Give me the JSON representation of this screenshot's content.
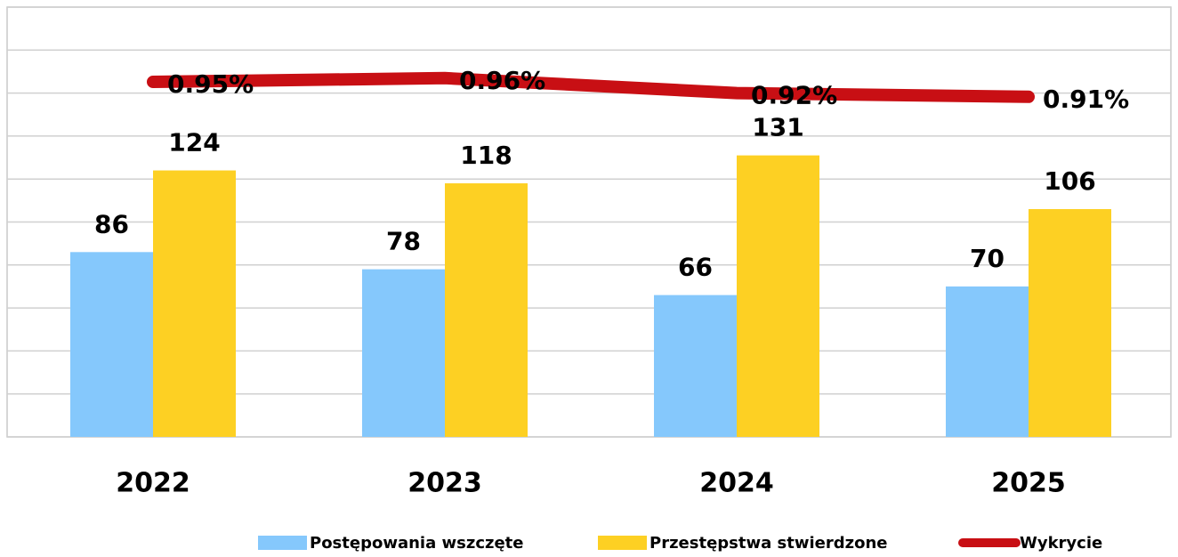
{
  "chart_data": {
    "type": "bar",
    "categories": [
      "2022",
      "2023",
      "2024",
      "2025"
    ],
    "series": [
      {
        "name": "Postępowania wszczęte",
        "color": "#85c8fc",
        "type": "bar",
        "values": [
          86,
          78,
          66,
          70
        ]
      },
      {
        "name": "Przestępstwa stwierdzone",
        "color": "#fdd023",
        "type": "bar",
        "values": [
          124,
          118,
          131,
          106
        ]
      },
      {
        "name": "Wykrycie",
        "color": "#c80f14",
        "type": "line",
        "axis": "y2",
        "values": [
          0.95,
          0.96,
          0.92,
          0.91
        ],
        "value_labels": [
          "0.95%",
          "0.96%",
          "0.92%",
          "0.91%"
        ]
      }
    ],
    "ylim": [
      0,
      200
    ],
    "yticks": [
      0,
      20,
      40,
      60,
      80,
      100,
      120,
      140,
      160,
      180,
      200
    ],
    "y2lim": [
      0,
      1.15
    ],
    "grid": true,
    "legend": "bottom"
  }
}
